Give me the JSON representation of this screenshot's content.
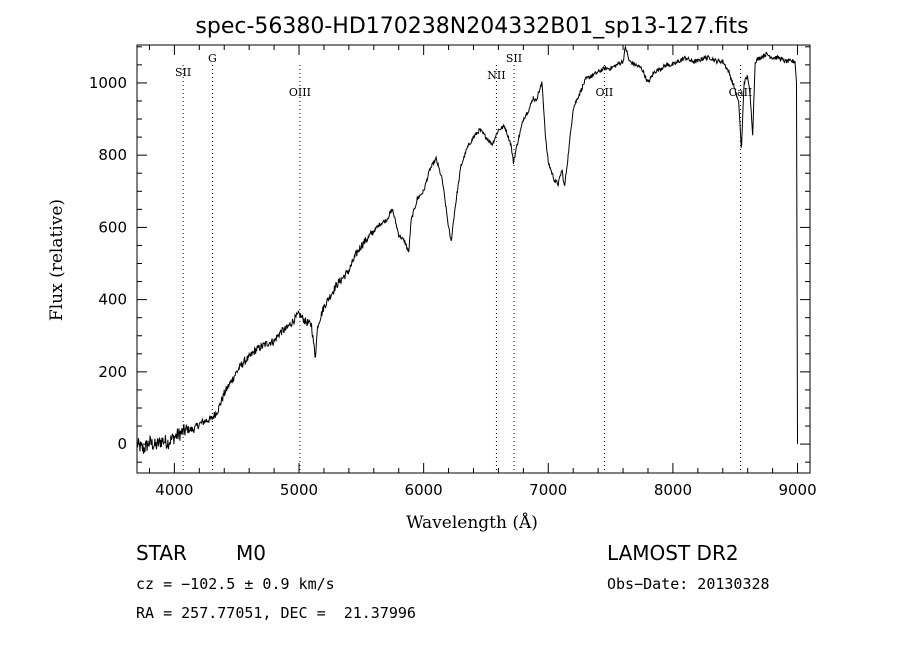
{
  "chart_data": {
    "type": "line",
    "title": "spec-56380-HD170238N204332B01_sp13-127.fits",
    "xlabel": "Wavelength (Å)",
    "ylabel": "Flux (relative)",
    "xlim": [
      3700,
      9100
    ],
    "ylim": [
      -80,
      1105
    ],
    "xticks": [
      4000,
      5000,
      6000,
      7000,
      8000,
      9000
    ],
    "yticks": [
      0,
      200,
      400,
      600,
      800,
      1000
    ],
    "grid": false,
    "series": [
      {
        "x": [
          3700,
          3750,
          3800,
          3850,
          3900,
          3950,
          4000,
          4050,
          4100,
          4150,
          4200,
          4250,
          4300,
          4350,
          4400,
          4450,
          4500,
          4550,
          4600,
          4650,
          4700,
          4750,
          4800,
          4850,
          4900,
          4950,
          5000,
          5050,
          5100,
          5130,
          5150,
          5200,
          5250,
          5300,
          5350,
          5400,
          5450,
          5500,
          5550,
          5600,
          5650,
          5700,
          5750,
          5800,
          5850,
          5880,
          5900,
          5950,
          6000,
          6050,
          6100,
          6150,
          6200,
          6220,
          6250,
          6300,
          6350,
          6400,
          6450,
          6500,
          6550,
          6600,
          6650,
          6700,
          6720,
          6750,
          6800,
          6850,
          6880,
          6900,
          6950,
          6980,
          7000,
          7050,
          7080,
          7110,
          7130,
          7160,
          7200,
          7250,
          7300,
          7350,
          7400,
          7450,
          7500,
          7550,
          7600,
          7620,
          7650,
          7700,
          7750,
          7800,
          7850,
          7900,
          7950,
          8000,
          8050,
          8100,
          8150,
          8200,
          8250,
          8300,
          8350,
          8400,
          8450,
          8500,
          8530,
          8550,
          8570,
          8600,
          8620,
          8640,
          8660,
          8700,
          8750,
          8800,
          8850,
          8900,
          8950,
          8980,
          9000
        ],
        "y": [
          0,
          -15,
          5,
          -5,
          10,
          5,
          20,
          30,
          40,
          40,
          55,
          65,
          70,
          95,
          140,
          170,
          200,
          225,
          240,
          260,
          270,
          280,
          285,
          310,
          320,
          340,
          360,
          340,
          330,
          240,
          330,
          380,
          410,
          440,
          460,
          480,
          520,
          550,
          570,
          590,
          610,
          620,
          650,
          580,
          560,
          530,
          620,
          680,
          700,
          760,
          790,
          730,
          600,
          560,
          650,
          770,
          820,
          850,
          870,
          850,
          830,
          870,
          880,
          830,
          780,
          830,
          900,
          930,
          960,
          950,
          1000,
          840,
          780,
          730,
          720,
          760,
          710,
          800,
          930,
          970,
          1010,
          1020,
          1030,
          1040,
          1040,
          1050,
          1060,
          1100,
          1060,
          1050,
          1040,
          1000,
          1030,
          1040,
          1050,
          1050,
          1060,
          1070,
          1060,
          1060,
          1070,
          1070,
          1060,
          1060,
          1030,
          980,
          940,
          810,
          1000,
          1020,
          960,
          860,
          1060,
          1070,
          1080,
          1070,
          1070,
          1060,
          1060,
          1060,
          0
        ]
      }
    ],
    "line_markers": [
      {
        "label": "SII",
        "x": 4070
      },
      {
        "label": "G",
        "x": 4305
      },
      {
        "label": "OIII",
        "x": 5007
      },
      {
        "label": "NII",
        "x": 6584
      },
      {
        "label": "SII",
        "x": 6725
      },
      {
        "label": "OII",
        "x": 7450
      },
      {
        "label": "CaII",
        "x": 8542
      }
    ]
  },
  "info": {
    "object_type": "STAR",
    "subclass": "M0",
    "survey": "LAMOST DR2",
    "velocity": "cz = −102.5 ± 0.9 km/s",
    "obs_date": "Obs−Date: 20130328",
    "coords": "RA = 257.77051, DEC =  21.37996"
  }
}
